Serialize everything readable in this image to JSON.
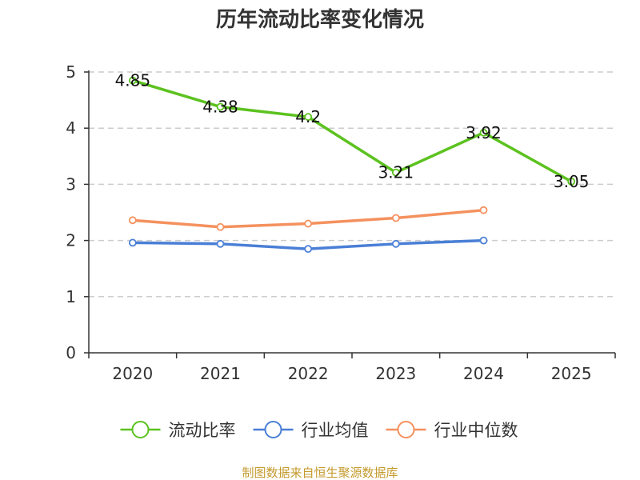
{
  "chart_data": {
    "type": "line",
    "title": "历年流动比率变化情况",
    "categories": [
      "2020",
      "2021",
      "2022",
      "2023",
      "2024",
      "2025"
    ],
    "ylim": [
      0,
      5
    ],
    "yticks": [
      "0",
      "1",
      "2",
      "3",
      "4",
      "5"
    ],
    "grid": "horizontal dashed",
    "legend_position": "bottom",
    "series": [
      {
        "name": "流动比率",
        "color": "#5cc21f",
        "values": [
          4.85,
          4.38,
          4.2,
          3.21,
          3.92,
          3.05
        ],
        "labels": [
          "4.85",
          "4.38",
          "4.2",
          "3.21",
          "3.92",
          "3.05"
        ]
      },
      {
        "name": "行业均值",
        "color": "#4a7fd6",
        "values": [
          1.96,
          1.94,
          1.85,
          1.94,
          2.0,
          null
        ]
      },
      {
        "name": "行业中位数",
        "color": "#f4915e",
        "values": [
          2.36,
          2.24,
          2.3,
          2.4,
          2.54,
          null
        ]
      }
    ]
  },
  "source_text": "制图数据来自恒生聚源数据库"
}
